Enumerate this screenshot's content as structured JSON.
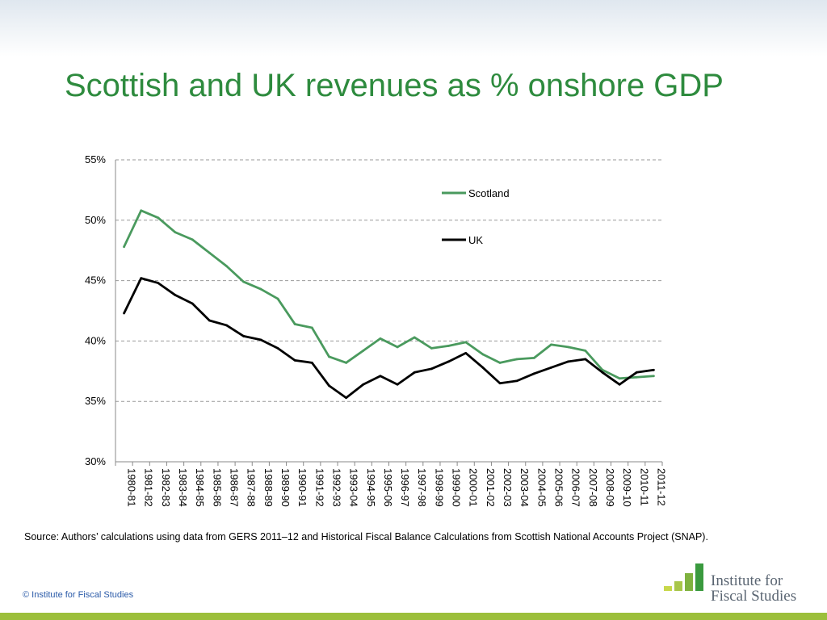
{
  "slide": {
    "title": "Scottish and UK revenues as % onshore GDP",
    "source": "Source: Authors’ calculations using data from GERS 2011–12 and Historical Fiscal Balance Calculations from Scottish National Accounts Project (SNAP).",
    "copyright": "© Institute for Fiscal Studies",
    "logo": {
      "line1": "Institute for",
      "line2": "Fiscal Studies",
      "bar_colors": [
        "#c8d84a",
        "#a8c64a",
        "#7fb23f",
        "#3a9a3e"
      ]
    },
    "accent_color": "#2e8b3e",
    "footer_rule_color": "#9cbf3b"
  },
  "chart_data": {
    "type": "line",
    "title": "",
    "xlabel": "",
    "ylabel": "",
    "ylim": [
      30,
      55
    ],
    "yticks": [
      30,
      35,
      40,
      45,
      50,
      55
    ],
    "ytick_labels": [
      "30%",
      "35%",
      "40%",
      "45%",
      "50%",
      "55%"
    ],
    "grid": "horizontal dashed",
    "legend_position": "top-right",
    "categories": [
      "1980-81",
      "1981-82",
      "1982-83",
      "1983-84",
      "1984-85",
      "1985-86",
      "1986-87",
      "1987-88",
      "1988-89",
      "1989-90",
      "1990-91",
      "1991-92",
      "1992-93",
      "1993-04",
      "1994-95",
      "1995-06",
      "1996-97",
      "1997-98",
      "1998-99",
      "1999-00",
      "2000-01",
      "2001-02",
      "2002-03",
      "2003-04",
      "2004-05",
      "2005-06",
      "2006-07",
      "2007-08",
      "2008-09",
      "2009-10",
      "2010-11",
      "2011-12"
    ],
    "series": [
      {
        "name": "Scotland",
        "color": "#4a9a5e",
        "values": [
          47.8,
          50.8,
          50.2,
          49.0,
          48.4,
          47.3,
          46.2,
          44.9,
          44.3,
          43.5,
          41.4,
          41.1,
          38.7,
          38.2,
          39.2,
          40.2,
          39.5,
          40.3,
          39.4,
          39.6,
          39.9,
          38.9,
          38.2,
          38.5,
          38.6,
          39.7,
          39.5,
          39.2,
          37.6,
          36.9,
          37.0,
          37.1
        ]
      },
      {
        "name": "UK",
        "color": "#000000",
        "values": [
          42.3,
          45.2,
          44.8,
          43.8,
          43.1,
          41.7,
          41.3,
          40.4,
          40.1,
          39.4,
          38.4,
          38.2,
          36.3,
          35.3,
          36.4,
          37.1,
          36.4,
          37.4,
          37.7,
          38.3,
          39.0,
          37.8,
          36.5,
          36.7,
          37.3,
          37.8,
          38.3,
          38.5,
          37.4,
          36.4,
          37.4,
          37.6
        ]
      }
    ]
  }
}
